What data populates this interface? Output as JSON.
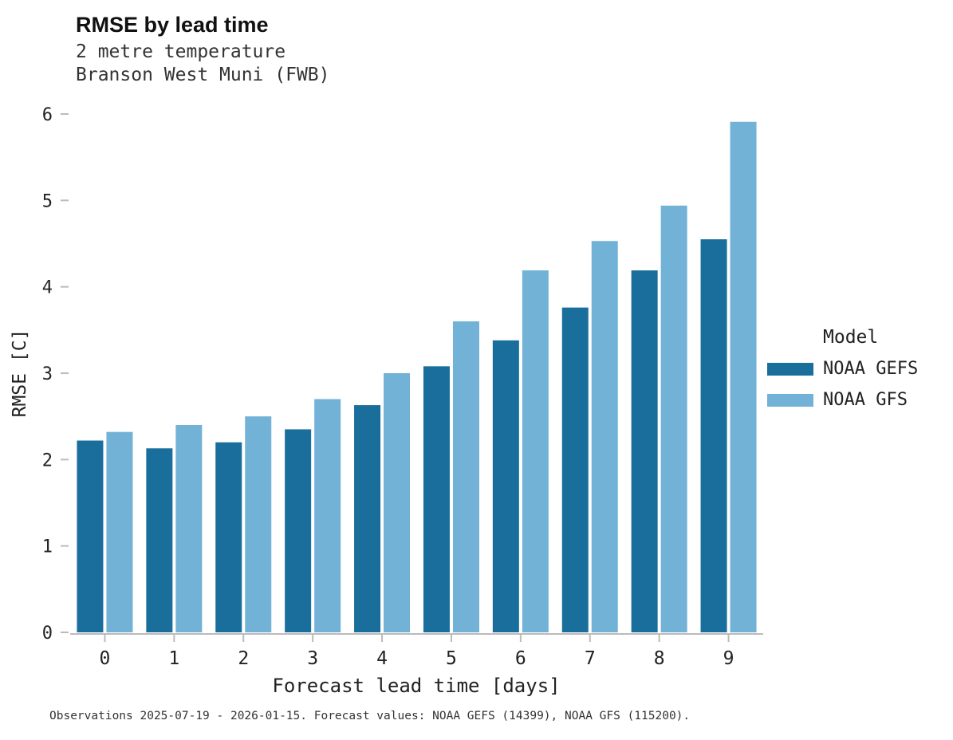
{
  "header": {
    "title": "RMSE by lead time",
    "subtitle1": "2 metre temperature",
    "subtitle2": "Branson West Muni (FWB)"
  },
  "footer": {
    "caption": "Observations 2025-07-19 - 2026-01-15. Forecast values: NOAA GEFS (14399), NOAA GFS (115200)."
  },
  "legend": {
    "title": "Model",
    "entries": [
      {
        "label": "NOAA GEFS",
        "color": "#1a6e9c"
      },
      {
        "label": "NOAA GFS",
        "color": "#72b2d7"
      }
    ]
  },
  "colors": {
    "axis": "#bbbbbb",
    "tick_label": "#222222",
    "gefs": "#1a6e9c",
    "gfs": "#72b2d7"
  },
  "chart_data": {
    "type": "bar",
    "title": "RMSE by lead time",
    "subtitle": "2 metre temperature — Branson West Muni (FWB)",
    "categories": [
      "0",
      "1",
      "2",
      "3",
      "4",
      "5",
      "6",
      "7",
      "8",
      "9"
    ],
    "series": [
      {
        "name": "NOAA GEFS",
        "color": "#1a6e9c",
        "values": [
          2.22,
          2.13,
          2.2,
          2.35,
          2.63,
          3.08,
          3.38,
          3.76,
          4.19,
          4.55
        ]
      },
      {
        "name": "NOAA GFS",
        "color": "#72b2d7",
        "values": [
          2.32,
          2.4,
          2.5,
          2.7,
          3.0,
          3.6,
          4.19,
          4.53,
          4.94,
          5.91
        ]
      }
    ],
    "xlabel": "Forecast lead time [days]",
    "ylabel": "RMSE [C]",
    "ylim": [
      0,
      6
    ],
    "yticks": [
      0,
      1,
      2,
      3,
      4,
      5,
      6
    ],
    "grid": false,
    "legend_position": "right"
  }
}
